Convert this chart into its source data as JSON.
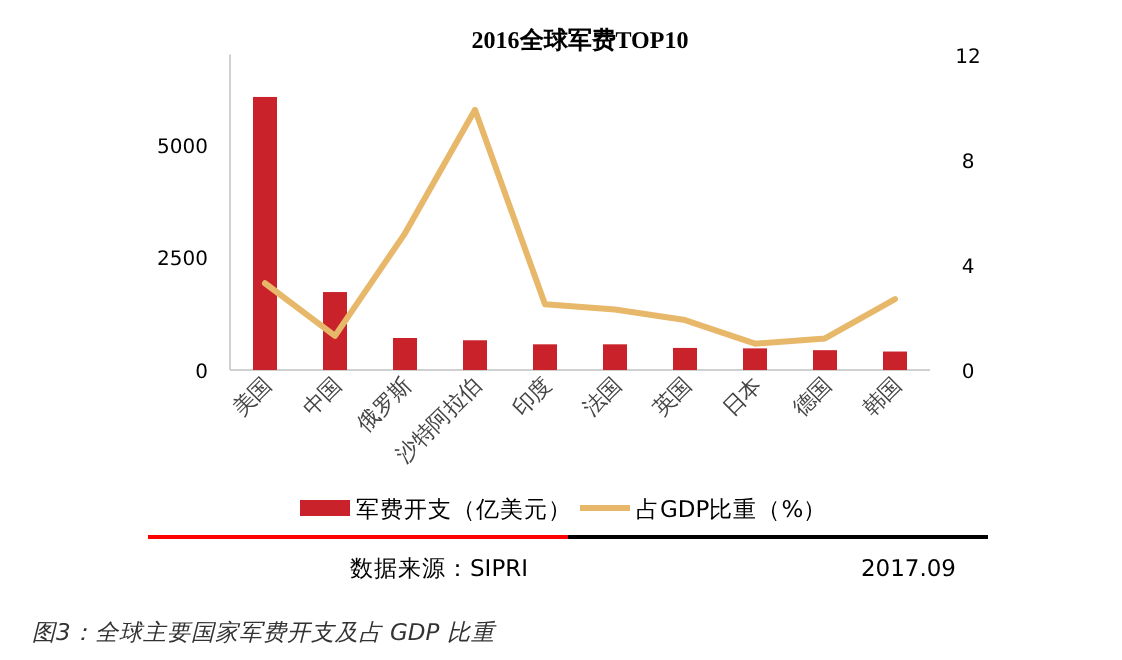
{
  "chart_data": {
    "type": "bar",
    "title": "2016全球军费TOP10",
    "categories": [
      "美国",
      "中国",
      "俄罗斯",
      "沙特阿拉伯",
      "印度",
      "法国",
      "英国",
      "日本",
      "德国",
      "韩国"
    ],
    "series": [
      {
        "name": "军费开支（亿美元）",
        "color": "#c9222a",
        "values": [
          6060,
          1730,
          710,
          660,
          570,
          570,
          490,
          480,
          440,
          410
        ]
      },
      {
        "name": "占GDP比重（%）",
        "type": "line",
        "axis": "y2",
        "color": "#e8b86a",
        "values": [
          3.3,
          1.3,
          5.2,
          9.9,
          2.5,
          2.3,
          1.9,
          1.0,
          1.2,
          2.7
        ]
      }
    ],
    "ylim": [
      0,
      7000
    ],
    "yticks": [
      0,
      2500,
      5000
    ],
    "y2lim": [
      0,
      12
    ],
    "y2ticks": [
      0,
      4,
      8,
      12
    ],
    "grid": false,
    "legend": "bottom",
    "marker": "none",
    "line_style": "solid",
    "annotations": [
      "数据来源：SIPRI",
      "2017.09",
      "图3：全球主要国家军费开支及占 GDP 比重"
    ]
  }
}
